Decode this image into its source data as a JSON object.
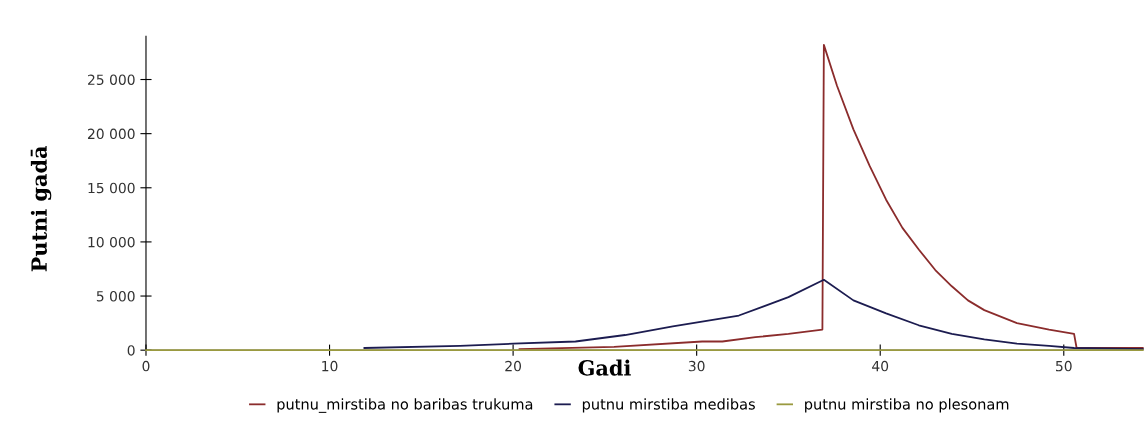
{
  "chart_data": {
    "type": "line",
    "xlabel": "Gadi",
    "ylabel": "Putni gadā",
    "xlim": [
      0,
      54.3
    ],
    "ylim": [
      0,
      29000
    ],
    "xticks": [
      0,
      10,
      20,
      30,
      40,
      50
    ],
    "yticks": [
      0,
      {
        "value": 5000,
        "label": "5 000"
      },
      {
        "value": 10000,
        "label": "10 000"
      },
      {
        "value": 15000,
        "label": "15 000"
      },
      {
        "value": 20000,
        "label": "20 000"
      },
      {
        "value": 25000,
        "label": "25 000"
      }
    ],
    "grid": false,
    "legend": "bottom",
    "marker": "none",
    "line_style": "solid",
    "series": [
      {
        "name": "putnu_mirstiba no baribas trukuma",
        "color": "#8b2c2c",
        "x": [
          20.35,
          25.5,
          30.3,
          31.4,
          33.2,
          35.0,
          36.85,
          36.93,
          37.65,
          38.54,
          39.43,
          40.32,
          41.21,
          42.1,
          43.0,
          43.9,
          44.78,
          45.67,
          47.45,
          49.2,
          50.56,
          50.7,
          54.3
        ],
        "values": [
          100,
          300,
          800,
          800,
          1200,
          1500,
          1900,
          28200,
          24400,
          20400,
          17000,
          13900,
          11300,
          9300,
          7400,
          5900,
          4600,
          3700,
          2500,
          1900,
          1500,
          200,
          200
        ]
      },
      {
        "name": "putnu mirstiba medibas",
        "color": "#1c1c50",
        "x": [
          11.9,
          17.1,
          20.0,
          23.4,
          26.1,
          28.7,
          32.3,
          35.0,
          36.93,
          38.54,
          40.32,
          42.1,
          43.9,
          45.67,
          47.45,
          49.2,
          50.56,
          54.3
        ],
        "values": [
          200,
          400,
          600,
          800,
          1400,
          2200,
          3200,
          4900,
          6500,
          4600,
          3400,
          2300,
          1500,
          1000,
          600,
          400,
          200,
          100
        ]
      },
      {
        "name": "putnu mirstiba no plesonam",
        "color": "#9a9a40",
        "x": [
          0,
          54.3
        ],
        "values": [
          0,
          0
        ]
      }
    ]
  }
}
